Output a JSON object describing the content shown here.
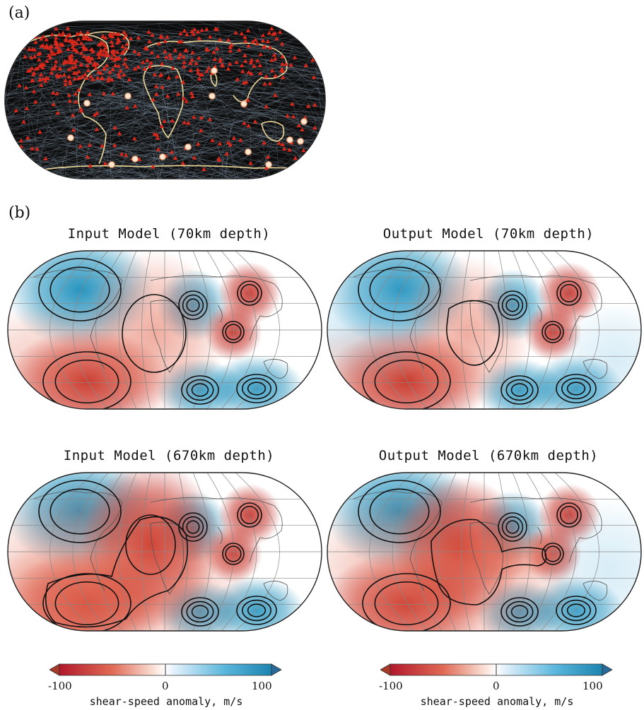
{
  "panels": {
    "a": "(a)",
    "b": "(b)"
  },
  "map_titles": {
    "in70": "Input Model (70km depth)",
    "out70": "Output Model (70km depth)",
    "in670": "Input Model (670km depth)",
    "out670": "Output Model (670km depth)"
  },
  "colorbar": {
    "min_label": "-100",
    "mid_label": "0",
    "max_label": "100",
    "title": "shear-speed anomaly, m/s",
    "min_value": -100,
    "max_value": 100,
    "colors": {
      "negative": "#b2182b",
      "mid": "#ffffff",
      "positive": "#1f8fb8"
    }
  },
  "colors": {
    "map_background_a": "#101010",
    "path_color": "#9fb6cc",
    "coastline_a": "#f0dc9c",
    "station_color": "#d8281c",
    "source_color": "#ffe9d6",
    "slow_anomaly": "#c0251c",
    "fast_anomaly": "#1d8fbb",
    "contour_color": "#111111"
  }
}
